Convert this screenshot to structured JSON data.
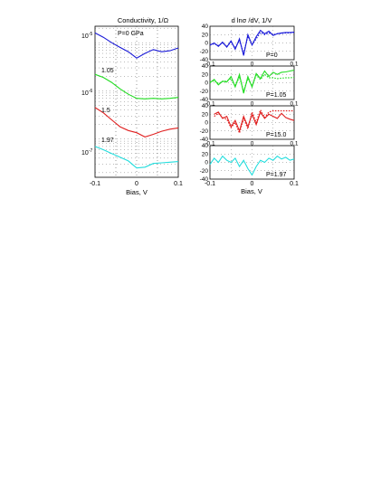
{
  "chart_data": [
    {
      "type": "line",
      "title": "Conductivity, 1/Ω",
      "xlabel": "Bias, V",
      "ylabel": "",
      "log_y": true,
      "x_ticks": [
        "-0.1",
        "0",
        "0.1"
      ],
      "y_ticks": [
        {
          "base": "10",
          "exp": "-5"
        },
        {
          "base": "10",
          "exp": "-6"
        },
        {
          "base": "10",
          "exp": "-7"
        }
      ],
      "grid": true,
      "x": [
        -0.1,
        -0.08,
        -0.06,
        -0.04,
        -0.02,
        0.0,
        0.02,
        0.04,
        0.06,
        0.08,
        0.1
      ],
      "series": [
        {
          "name": "P=0 GPa",
          "color": "#1a1ad8",
          "values": [
            1.6e-05,
            1.3e-05,
            1e-05,
            8e-06,
            6.5e-06,
            4.8e-06,
            6e-06,
            7.2e-06,
            6.5e-06,
            6.8e-06,
            7.8e-06
          ]
        },
        {
          "name": "1.05",
          "color": "#22dd22",
          "values": [
            2.2e-06,
            1.9e-06,
            1.5e-06,
            1.1e-06,
            8.5e-07,
            7e-07,
            6.8e-07,
            7e-07,
            6.8e-07,
            7e-07,
            7.3e-07
          ]
        },
        {
          "name": "1.5",
          "color": "#e02020",
          "values": [
            4.5e-07,
            3.5e-07,
            2.5e-07,
            1.8e-07,
            1.5e-07,
            1.35e-07,
            1.1e-07,
            1.25e-07,
            1.45e-07,
            1.6e-07,
            1.7e-07
          ]
        },
        {
          "name": "1.97",
          "color": "#22dddd",
          "values": [
            7e-08,
            6e-08,
            5e-08,
            4.2e-08,
            3.5e-08,
            2.5e-08,
            2.6e-08,
            3.1e-08,
            3.2e-08,
            3.3e-08,
            3.4e-08
          ]
        }
      ]
    },
    {
      "type": "line",
      "title": "d lnσ /dV, 1/V",
      "xlabel": "Bias, V",
      "ylabel": "",
      "ylim": [
        -40,
        40
      ],
      "y_ticks": [
        "40",
        "20",
        "0",
        "-20",
        "-40"
      ],
      "x_ticks": [
        "-0.1",
        "0",
        "0.1"
      ],
      "grid": true,
      "x": [
        -0.1,
        -0.09,
        -0.08,
        -0.07,
        -0.06,
        -0.05,
        -0.04,
        -0.03,
        -0.02,
        -0.01,
        0.0,
        0.01,
        0.02,
        0.03,
        0.04,
        0.05,
        0.06,
        0.07,
        0.08,
        0.09,
        0.1
      ],
      "panels": [
        {
          "label": "P=0",
          "color": "#1a1ad8",
          "values": [
            -5,
            0,
            -8,
            2,
            -10,
            5,
            -15,
            10,
            -30,
            20,
            -5,
            15,
            30,
            22,
            28,
            18,
            22,
            24,
            25,
            25,
            26
          ],
          "fit": [
            -5,
            -2,
            -6,
            0,
            -8,
            2,
            -12,
            6,
            -25,
            16,
            -4,
            10,
            25,
            20,
            24,
            20,
            22,
            23,
            24,
            24,
            25
          ]
        },
        {
          "label": "P=1.05",
          "color": "#22dd22",
          "values": [
            0,
            8,
            -5,
            4,
            2,
            15,
            -10,
            20,
            -25,
            15,
            -10,
            22,
            10,
            28,
            15,
            25,
            20,
            25,
            26,
            28,
            30
          ],
          "fit": [
            2,
            5,
            -2,
            3,
            4,
            10,
            -8,
            14,
            -20,
            10,
            -8,
            18,
            8,
            20,
            12,
            12,
            10,
            11,
            12,
            12,
            13
          ]
        },
        {
          "label": "P=15.0",
          "color": "#e02020",
          "values": [
            null,
            20,
            25,
            10,
            15,
            -10,
            5,
            -20,
            15,
            -10,
            20,
            -5,
            25,
            10,
            20,
            15,
            10,
            22,
            12,
            8,
            5
          ],
          "fit": [
            null,
            15,
            22,
            12,
            8,
            -12,
            0,
            -25,
            10,
            -15,
            25,
            0,
            30,
            12,
            25,
            28,
            28,
            28,
            28,
            28,
            28
          ]
        },
        {
          "label": "P=1.97",
          "color": "#22dddd",
          "values": [
            -5,
            10,
            0,
            15,
            5,
            0,
            10,
            -10,
            5,
            -15,
            -30,
            -10,
            5,
            0,
            10,
            5,
            15,
            8,
            12,
            5,
            8
          ],
          "fit": []
        }
      ]
    }
  ]
}
